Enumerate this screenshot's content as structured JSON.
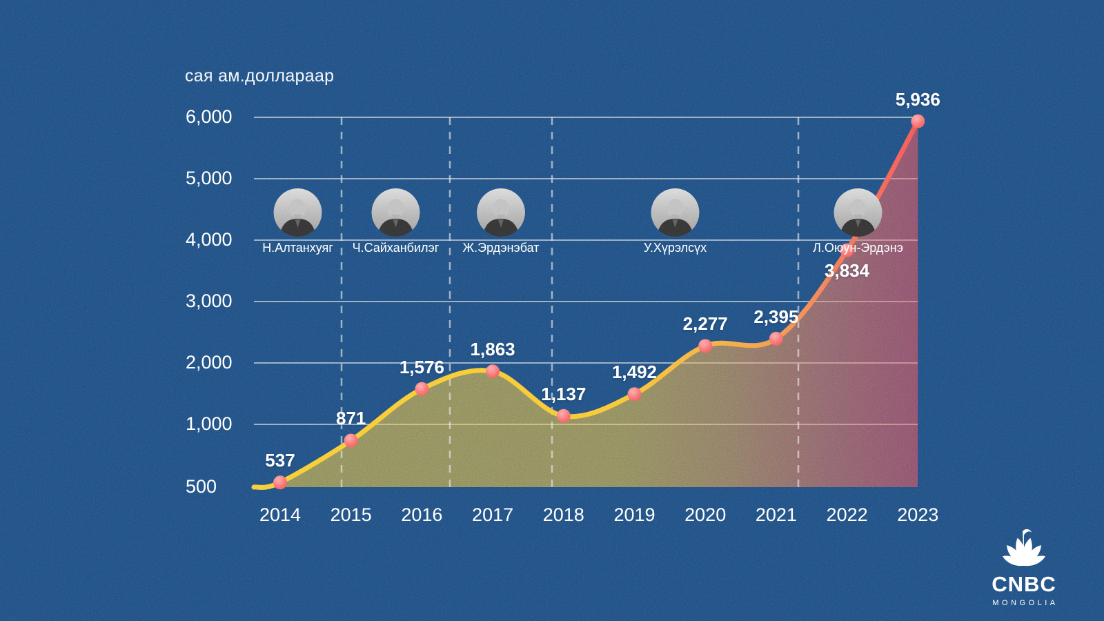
{
  "title": "сая ам.доллараар",
  "chart_data": {
    "type": "line",
    "title": "сая ам.доллараар",
    "ylabel": "сая ам.доллараар",
    "xlabel": "",
    "x_categories": [
      "2014",
      "2015",
      "2016",
      "2017",
      "2018",
      "2019",
      "2020",
      "2021",
      "2022",
      "2023"
    ],
    "points": [
      {
        "year": "2014",
        "value": 537,
        "label": "537",
        "label_side": "above"
      },
      {
        "year": "2015",
        "value": 871,
        "label": "871",
        "label_side": "above"
      },
      {
        "year": "2016",
        "value": 1576,
        "label": "1,576",
        "label_side": "above"
      },
      {
        "year": "2017",
        "value": 1863,
        "label": "1,863",
        "label_side": "above"
      },
      {
        "year": "2018",
        "value": 1137,
        "label": "1,137",
        "label_side": "above"
      },
      {
        "year": "2019",
        "value": 1492,
        "label": "1,492",
        "label_side": "above"
      },
      {
        "year": "2020",
        "value": 2277,
        "label": "2,277",
        "label_side": "above"
      },
      {
        "year": "2021",
        "value": 2395,
        "label": "2,395",
        "label_side": "above"
      },
      {
        "year": "2022",
        "value": 3834,
        "label": "3,834",
        "label_side": "below"
      },
      {
        "year": "2023",
        "value": 5936,
        "label": "5,936",
        "label_side": "above"
      }
    ],
    "yticks": [
      {
        "value": 500,
        "label": "500"
      },
      {
        "value": 1000,
        "label": "1,000"
      },
      {
        "value": 2000,
        "label": "2,000"
      },
      {
        "value": 3000,
        "label": "3,000"
      },
      {
        "value": 4000,
        "label": "4,000"
      },
      {
        "value": 5000,
        "label": "5,000"
      },
      {
        "value": 6000,
        "label": "6,000"
      }
    ],
    "ylim": [
      500,
      6000
    ],
    "grid": {
      "horizontal": "solid",
      "vertical_pm_dividers": "dashed"
    },
    "legend_position": "none"
  },
  "prime_ministers": [
    {
      "name": "Н.Алтанхуяг"
    },
    {
      "name": "Ч.Сайханбилэг"
    },
    {
      "name": "Ж.Эрдэнэбат"
    },
    {
      "name": "У.Хүрэлсүх"
    },
    {
      "name": "Л.Оюун-Эрдэнэ"
    }
  ],
  "branding": {
    "name": "CNBC",
    "sub": "MONGOLIA"
  },
  "colors": {
    "background": "#1d4878",
    "text": "#ffffff",
    "grid_line": "#ffffff",
    "line_gradient": [
      "#f7c72f",
      "#f7c12f",
      "#f5a03f",
      "#f4714e",
      "#f44e4e"
    ],
    "point_fill_light": "#ff9f9f",
    "point_fill_dark": "#ee4b4b",
    "area_opacity": 0.48
  }
}
